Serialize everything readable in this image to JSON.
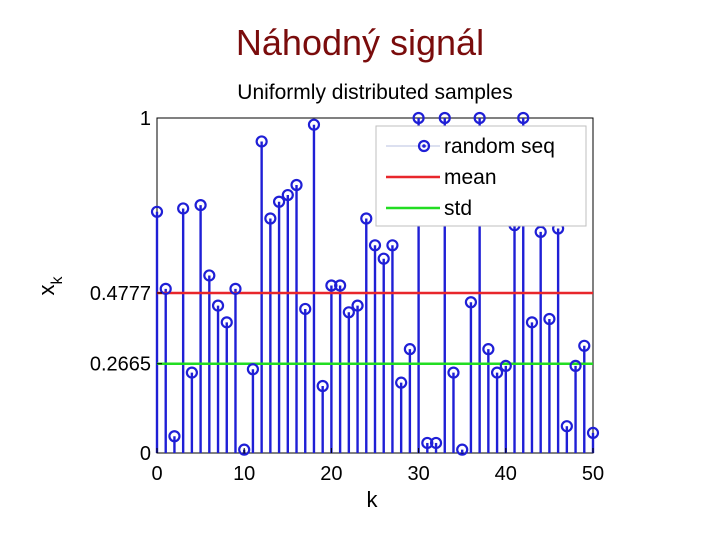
{
  "slide": {
    "title": "Náhodný signál"
  },
  "colors": {
    "stem": "#1f1fd6",
    "mean": "#e8262b",
    "std": "#22dd22",
    "title": "#7a0c0c"
  },
  "chart_data": {
    "type": "stem",
    "title": "Uniformly distributed samples",
    "xlabel": "k",
    "ylabel": "x_k",
    "xlim": [
      0,
      50
    ],
    "ylim": [
      0,
      1
    ],
    "xticks": [
      "0",
      "10",
      "20",
      "30",
      "40",
      "50"
    ],
    "yticks": [
      "0",
      "0.2665",
      "0.4777",
      "1"
    ],
    "ytick_values": [
      0,
      0.2665,
      0.4777,
      1
    ],
    "grid": false,
    "legend_position": "top-right",
    "series": [
      {
        "name": "random seq",
        "x": [
          0,
          1,
          2,
          3,
          4,
          5,
          6,
          7,
          8,
          9,
          10,
          11,
          12,
          13,
          14,
          15,
          16,
          17,
          18,
          19,
          20,
          21,
          22,
          23,
          24,
          25,
          26,
          27,
          28,
          29,
          30,
          31,
          32,
          33,
          34,
          35,
          36,
          37,
          38,
          39,
          40,
          41,
          42,
          43,
          44,
          45,
          46,
          47,
          48,
          49,
          50
        ],
        "y": [
          0.72,
          0.49,
          0.05,
          0.73,
          0.24,
          0.74,
          0.53,
          0.44,
          0.39,
          0.49,
          0.01,
          0.25,
          0.93,
          0.7,
          0.75,
          0.77,
          0.8,
          0.43,
          0.98,
          0.2,
          0.5,
          0.5,
          0.42,
          0.44,
          0.7,
          0.62,
          0.58,
          0.62,
          0.21,
          0.31,
          1.0,
          0.03,
          0.03,
          1.0,
          0.24,
          0.01,
          0.45,
          1.0,
          0.31,
          0.24,
          0.26,
          0.68,
          1.0,
          0.39,
          0.66,
          0.4,
          0.67,
          0.08,
          0.26,
          0.32,
          0.06
        ]
      },
      {
        "name": "mean",
        "value": 0.4777
      },
      {
        "name": "std",
        "value": 0.2665
      }
    ],
    "legend": [
      "random seq",
      "mean",
      "std"
    ]
  }
}
